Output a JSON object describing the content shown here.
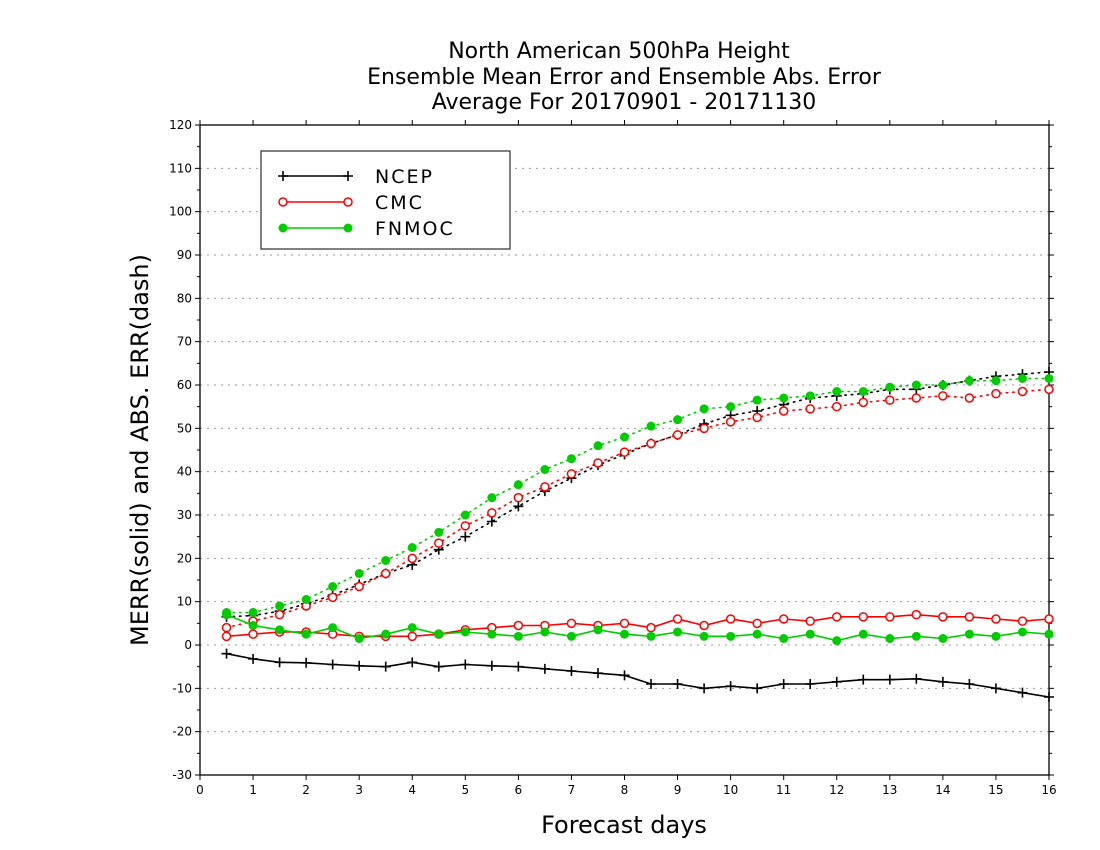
{
  "chart_data": {
    "type": "line",
    "title_lines": [
      "North American 500hPa Height",
      "Ensemble Mean Error and Ensemble Abs. Error",
      "Average For 20170901 - 20171130"
    ],
    "xlabel": "Forecast days",
    "ylabel": "MERR(solid) and ABS. ERR(dash)",
    "xlim": [
      0,
      16
    ],
    "ylim": [
      -30,
      120
    ],
    "xticks": [
      0,
      1,
      2,
      3,
      4,
      5,
      6,
      7,
      8,
      9,
      10,
      11,
      12,
      13,
      14,
      15,
      16
    ],
    "yticks": [
      -30,
      -20,
      -10,
      0,
      10,
      20,
      30,
      40,
      50,
      60,
      70,
      80,
      90,
      100,
      110,
      120
    ],
    "grid": "horizontal dotted",
    "legend_position": "top-left",
    "x": [
      0.5,
      1,
      1.5,
      2,
      2.5,
      3,
      3.5,
      4,
      4.5,
      5,
      5.5,
      6,
      6.5,
      7,
      7.5,
      8,
      8.5,
      9,
      9.5,
      10,
      10.5,
      11,
      11.5,
      12,
      12.5,
      13,
      13.5,
      14,
      14.5,
      15,
      15.5,
      16
    ],
    "series": [
      {
        "name": "NCEP",
        "color": "#000000",
        "marker": "plus",
        "merr": [
          -2,
          -3.2,
          -4,
          -4.1,
          -4.5,
          -4.8,
          -5,
          -4,
          -5,
          -4.5,
          -4.8,
          -5,
          -5.5,
          -6,
          -6.5,
          -7,
          -9,
          -9,
          -10,
          -9.5,
          -10,
          -9,
          -9,
          -8.5,
          -8,
          -8,
          -7.8,
          -8.5,
          -9,
          -10,
          -11,
          -12
        ],
        "abs_err": [
          6.5,
          6.8,
          7.8,
          9.5,
          11.5,
          14,
          16.5,
          18.5,
          22,
          25,
          28.5,
          32,
          35.5,
          38.5,
          41.5,
          44,
          46.5,
          48.5,
          51,
          53,
          54,
          55.5,
          57,
          57.5,
          58,
          59,
          59,
          60,
          61,
          62,
          62.5,
          63
        ]
      },
      {
        "name": "CMC",
        "color": "#ff0000",
        "marker": "open-circle",
        "merr": [
          2,
          2.5,
          3,
          3,
          2.5,
          2,
          2,
          2,
          2.5,
          3.5,
          4,
          4.5,
          4.5,
          5,
          4.5,
          5,
          4,
          6,
          4.5,
          6,
          5,
          6,
          5.5,
          6.5,
          6.5,
          6.5,
          7,
          6.5,
          6.5,
          6,
          5.5,
          6
        ],
        "abs_err": [
          4,
          5.5,
          7,
          9,
          11,
          13.5,
          16.5,
          20,
          23.5,
          27.5,
          30.5,
          34,
          36.5,
          39.5,
          42,
          44.5,
          46.5,
          48.5,
          50,
          51.5,
          52.5,
          54,
          54.5,
          55,
          56,
          56.5,
          57,
          57.5,
          57,
          58,
          58.5,
          59
        ]
      },
      {
        "name": "FNMOC",
        "color": "#00cc00",
        "marker": "filled-circle",
        "merr": [
          7,
          4.5,
          3.5,
          2.5,
          4,
          1.5,
          2.5,
          4,
          2.5,
          3,
          2.5,
          2,
          3,
          2,
          3.5,
          2.5,
          2,
          3,
          2,
          2,
          2.5,
          1.5,
          2.5,
          1,
          2.5,
          1.5,
          2,
          1.5,
          2.5,
          2,
          3,
          2.5
        ],
        "abs_err": [
          7.5,
          7.5,
          9,
          10.5,
          13.5,
          16.5,
          19.5,
          22.5,
          26,
          30,
          34,
          37,
          40.5,
          43,
          46,
          48,
          50.5,
          52,
          54.5,
          55,
          56.5,
          57,
          57.5,
          58.5,
          58.5,
          59.5,
          60,
          60,
          61,
          61,
          61.5,
          61.5
        ]
      }
    ]
  }
}
